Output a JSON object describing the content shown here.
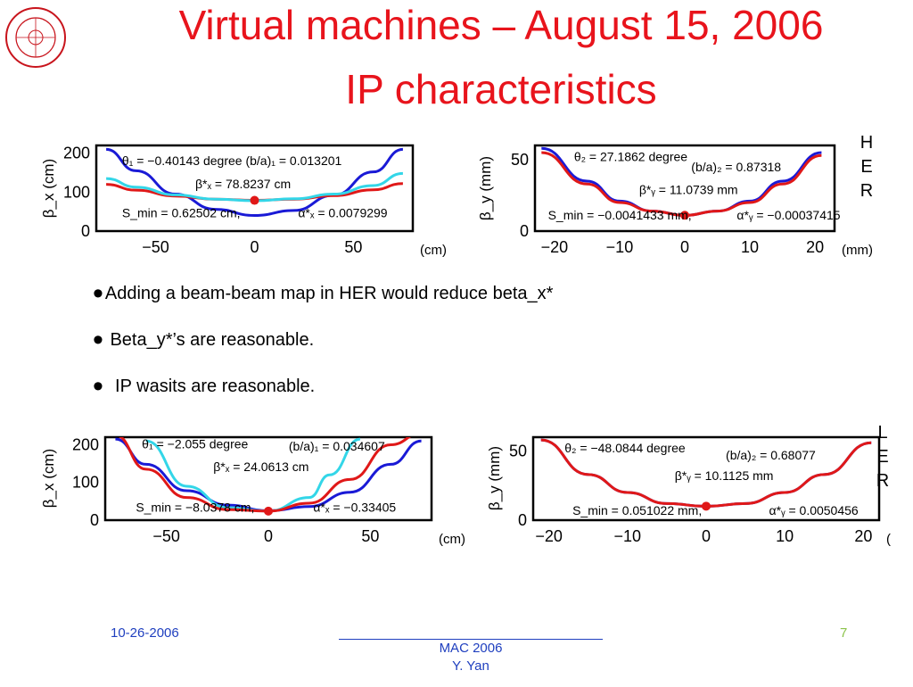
{
  "slide": {
    "title_line1": "Virtual machines – August 15, 2006",
    "title_line2": "IP characteristics",
    "her_letters": [
      "H",
      "E",
      "R"
    ],
    "ler_letters": [
      "L",
      "E",
      "R"
    ],
    "bullets": [
      "Adding a beam-beam map in HER would reduce beta_x*",
      "Beta_y*’s are reasonable.",
      "IP wasits are reasonable."
    ],
    "footer": {
      "date": "10-26-2006",
      "conference": "MAC 2006",
      "author": "Y. Yan",
      "page": "7"
    }
  },
  "chart_data": [
    {
      "type": "line",
      "ylabel": "β_x (cm)",
      "xlabel": "(cm)",
      "xlim": [
        -80,
        80
      ],
      "ylim": [
        0,
        220
      ],
      "xticks": [
        -50,
        0,
        50
      ],
      "yticks": [
        0,
        100,
        200
      ],
      "series": [
        {
          "color": "#1a1ad6",
          "x": [
            -75,
            -60,
            -40,
            -20,
            0,
            20,
            40,
            60,
            75
          ],
          "y": [
            210,
            155,
            95,
            56,
            40,
            53,
            92,
            152,
            210
          ]
        },
        {
          "color": "#e01818",
          "x": [
            -75,
            -60,
            -40,
            -20,
            0,
            20,
            40,
            60,
            75
          ],
          "y": [
            120,
            105,
            90,
            82,
            79,
            82,
            91,
            106,
            122
          ]
        },
        {
          "color": "#33d6e8",
          "x": [
            -75,
            -60,
            -40,
            -20,
            0,
            20,
            40,
            60,
            75
          ],
          "y": [
            135,
            113,
            93,
            82,
            78,
            83,
            95,
            117,
            148
          ]
        }
      ],
      "marker": {
        "x": 0,
        "y": 79
      },
      "annotations": [
        {
          "text": "θ₁ = −0.40143 degree  (b/a)₁ = 0.013201",
          "x": -67,
          "y": 170
        },
        {
          "text": "β*ₓ = 78.8237 cm",
          "x": -30,
          "y": 110
        },
        {
          "text": "S_min = 0.62502 cm,",
          "x": -67,
          "y": 36
        },
        {
          "text": "α*ₓ = 0.0079299",
          "x": 22,
          "y": 36
        }
      ]
    },
    {
      "type": "line",
      "ylabel": "β_y (mm)",
      "xlabel": "(mm)",
      "xlim": [
        -23,
        23
      ],
      "ylim": [
        0,
        60
      ],
      "xticks": [
        -20,
        -10,
        0,
        10,
        20
      ],
      "yticks": [
        0,
        50
      ],
      "series": [
        {
          "color": "#1a1ad6",
          "x": [
            -22,
            -15,
            -10,
            -5,
            0,
            5,
            10,
            15,
            21
          ],
          "y": [
            58,
            35,
            21,
            14,
            11,
            14,
            21,
            35,
            55
          ]
        },
        {
          "color": "#e01818",
          "x": [
            -22,
            -15,
            -10,
            -5,
            0,
            5,
            10,
            15,
            21
          ],
          "y": [
            55,
            33,
            20,
            14,
            11,
            14,
            20,
            33,
            53
          ]
        }
      ],
      "marker": {
        "x": 0,
        "y": 11.1
      },
      "annotations": [
        {
          "text": "θ₂ = 27.1862 degree",
          "x": -17,
          "y": 49
        },
        {
          "text": "(b/a)₂ = 0.87318",
          "x": 1,
          "y": 42
        },
        {
          "text": "β*ᵧ = 11.0739 mm",
          "x": -7,
          "y": 26
        },
        {
          "text": "S_min = −0.0041433 mm,",
          "x": -21,
          "y": 8
        },
        {
          "text": "α*ᵧ = −0.00037415",
          "x": 8,
          "y": 8
        }
      ]
    },
    {
      "type": "line",
      "ylabel": "β_x (cm)",
      "xlabel": "(cm)",
      "xlim": [
        -80,
        80
      ],
      "ylim": [
        0,
        220
      ],
      "xticks": [
        -50,
        0,
        50
      ],
      "yticks": [
        0,
        100,
        200
      ],
      "series": [
        {
          "color": "#1a1ad6",
          "x": [
            -75,
            -60,
            -40,
            -20,
            0,
            20,
            40,
            60,
            75
          ],
          "y": [
            215,
            148,
            78,
            40,
            25,
            36,
            74,
            148,
            210
          ]
        },
        {
          "color": "#33d6e8",
          "x": [
            -60,
            -40,
            -20,
            0,
            20,
            30,
            45
          ],
          "y": [
            210,
            90,
            33,
            24,
            60,
            120,
            215
          ]
        },
        {
          "color": "#e01818",
          "x": [
            -75,
            -60,
            -40,
            -20,
            0,
            20,
            40,
            60,
            75
          ],
          "y": [
            225,
            135,
            60,
            28,
            24,
            45,
            108,
            200,
            230
          ]
        }
      ],
      "marker": {
        "x": 0,
        "y": 24
      },
      "annotations": [
        {
          "text": "θ₁ = −2.055 degree",
          "x": -62,
          "y": 190
        },
        {
          "text": "(b/a)₁ = 0.034607",
          "x": 10,
          "y": 185
        },
        {
          "text": "β*ₓ = 24.0613 cm",
          "x": -27,
          "y": 130
        },
        {
          "text": "S_min = −8.0378 cm,",
          "x": -65,
          "y": 22
        },
        {
          "text": "α*ₓ = −0.33405",
          "x": 22,
          "y": 22
        }
      ]
    },
    {
      "type": "line",
      "ylabel": "β_y (mm)",
      "xlabel": "(mm)",
      "xlim": [
        -22,
        22
      ],
      "ylim": [
        0,
        60
      ],
      "xticks": [
        -20,
        -10,
        0,
        10,
        20
      ],
      "yticks": [
        0,
        50
      ],
      "series": [
        {
          "color": "#1a1ad6",
          "x": [
            -21,
            -15,
            -10,
            -5,
            0,
            5,
            10,
            15,
            21
          ],
          "y": [
            58,
            33,
            20,
            12,
            10,
            12,
            20,
            33,
            56
          ]
        },
        {
          "color": "#e01818",
          "x": [
            -21,
            -15,
            -10,
            -5,
            0,
            5,
            10,
            15,
            21
          ],
          "y": [
            58,
            33,
            20,
            12,
            10,
            12,
            20,
            33,
            56
          ]
        }
      ],
      "marker": {
        "x": 0,
        "y": 10.1
      },
      "annotations": [
        {
          "text": "θ₂ = −48.0844 degree",
          "x": -18,
          "y": 49
        },
        {
          "text": "(b/a)₂ = 0.68077",
          "x": 2.5,
          "y": 44
        },
        {
          "text": "β*ᵧ = 10.1125 mm",
          "x": -4,
          "y": 29
        },
        {
          "text": "S_min = 0.051022 mm,",
          "x": -17,
          "y": 4
        },
        {
          "text": "α*ᵧ = 0.0050456",
          "x": 8,
          "y": 4
        }
      ]
    }
  ]
}
